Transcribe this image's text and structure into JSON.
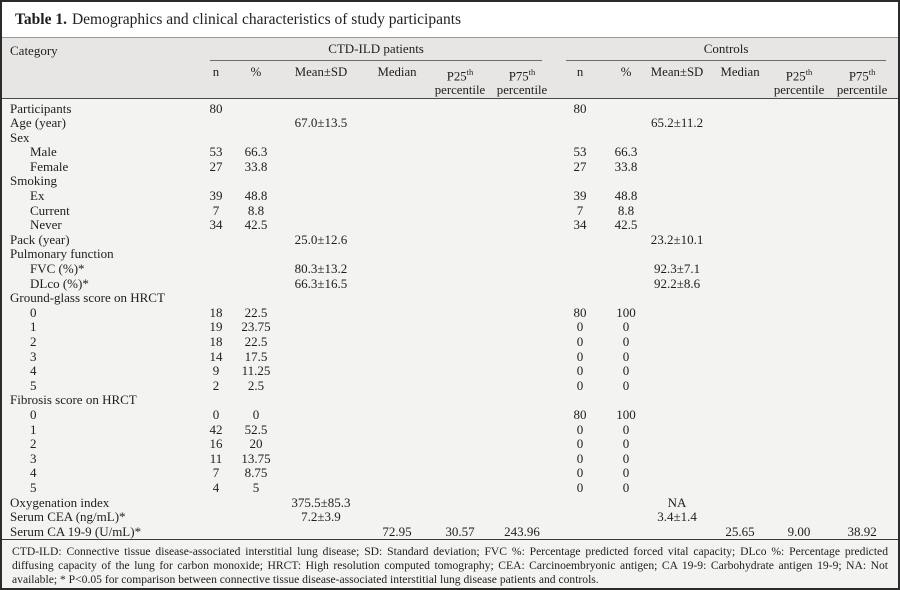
{
  "table": {
    "title_label": "Table 1.",
    "title_text": "Demographics and clinical characteristics of study participants"
  },
  "header": {
    "category": "Category",
    "group_patients": "CTD-ILD patients",
    "group_controls": "Controls",
    "columns": [
      {
        "label": "n"
      },
      {
        "label": "%"
      },
      {
        "label": "Mean±SD"
      },
      {
        "label": "Median"
      },
      {
        "label": "P25",
        "sup": "th",
        "line2": "percentile"
      },
      {
        "label": "P75",
        "sup": "th",
        "line2": "percentile"
      }
    ]
  },
  "rows": [
    {
      "label": "Participants",
      "indent": false,
      "v": [
        "80",
        "",
        "",
        "",
        "",
        "",
        "80",
        "",
        "",
        "",
        "",
        ""
      ]
    },
    {
      "label": "Age (year)",
      "indent": false,
      "v": [
        "",
        "",
        "67.0±13.5",
        "",
        "",
        "",
        "",
        "",
        "65.2±11.2",
        "",
        "",
        ""
      ]
    },
    {
      "label": "Sex",
      "indent": false,
      "v": [
        "",
        "",
        "",
        "",
        "",
        "",
        "",
        "",
        "",
        "",
        "",
        ""
      ]
    },
    {
      "label": "Male",
      "indent": true,
      "v": [
        "53",
        "66.3",
        "",
        "",
        "",
        "",
        "53",
        "66.3",
        "",
        "",
        "",
        ""
      ]
    },
    {
      "label": "Female",
      "indent": true,
      "v": [
        "27",
        "33.8",
        "",
        "",
        "",
        "",
        "27",
        "33.8",
        "",
        "",
        "",
        ""
      ]
    },
    {
      "label": "Smoking",
      "indent": false,
      "v": [
        "",
        "",
        "",
        "",
        "",
        "",
        "",
        "",
        "",
        "",
        "",
        ""
      ]
    },
    {
      "label": "Ex",
      "indent": true,
      "v": [
        "39",
        "48.8",
        "",
        "",
        "",
        "",
        "39",
        "48.8",
        "",
        "",
        "",
        ""
      ]
    },
    {
      "label": "Current",
      "indent": true,
      "v": [
        "7",
        "8.8",
        "",
        "",
        "",
        "",
        "7",
        "8.8",
        "",
        "",
        "",
        ""
      ]
    },
    {
      "label": "Never",
      "indent": true,
      "v": [
        "34",
        "42.5",
        "",
        "",
        "",
        "",
        "34",
        "42.5",
        "",
        "",
        "",
        ""
      ]
    },
    {
      "label": "Pack (year)",
      "indent": false,
      "v": [
        "",
        "",
        "25.0±12.6",
        "",
        "",
        "",
        "",
        "",
        "23.2±10.1",
        "",
        "",
        ""
      ]
    },
    {
      "label": "Pulmonary function",
      "indent": false,
      "v": [
        "",
        "",
        "",
        "",
        "",
        "",
        "",
        "",
        "",
        "",
        "",
        ""
      ]
    },
    {
      "label": "FVC (%)*",
      "indent": true,
      "v": [
        "",
        "",
        "80.3±13.2",
        "",
        "",
        "",
        "",
        "",
        "92.3±7.1",
        "",
        "",
        ""
      ]
    },
    {
      "label": "DLco (%)*",
      "indent": true,
      "v": [
        "",
        "",
        "66.3±16.5",
        "",
        "",
        "",
        "",
        "",
        "92.2±8.6",
        "",
        "",
        ""
      ]
    },
    {
      "label": "Ground-glass score on HRCT",
      "indent": false,
      "v": [
        "",
        "",
        "",
        "",
        "",
        "",
        "",
        "",
        "",
        "",
        "",
        ""
      ]
    },
    {
      "label": "0",
      "indent": true,
      "v": [
        "18",
        "22.5",
        "",
        "",
        "",
        "",
        "80",
        "100",
        "",
        "",
        "",
        ""
      ]
    },
    {
      "label": "1",
      "indent": true,
      "v": [
        "19",
        "23.75",
        "",
        "",
        "",
        "",
        "0",
        "0",
        "",
        "",
        "",
        ""
      ]
    },
    {
      "label": "2",
      "indent": true,
      "v": [
        "18",
        "22.5",
        "",
        "",
        "",
        "",
        "0",
        "0",
        "",
        "",
        "",
        ""
      ]
    },
    {
      "label": "3",
      "indent": true,
      "v": [
        "14",
        "17.5",
        "",
        "",
        "",
        "",
        "0",
        "0",
        "",
        "",
        "",
        ""
      ]
    },
    {
      "label": "4",
      "indent": true,
      "v": [
        "9",
        "11.25",
        "",
        "",
        "",
        "",
        "0",
        "0",
        "",
        "",
        "",
        ""
      ]
    },
    {
      "label": "5",
      "indent": true,
      "v": [
        "2",
        "2.5",
        "",
        "",
        "",
        "",
        "0",
        "0",
        "",
        "",
        "",
        ""
      ]
    },
    {
      "label": "Fibrosis score on HRCT",
      "indent": false,
      "v": [
        "",
        "",
        "",
        "",
        "",
        "",
        "",
        "",
        "",
        "",
        "",
        ""
      ]
    },
    {
      "label": "0",
      "indent": true,
      "v": [
        "0",
        "0",
        "",
        "",
        "",
        "",
        "80",
        "100",
        "",
        "",
        "",
        ""
      ]
    },
    {
      "label": "1",
      "indent": true,
      "v": [
        "42",
        "52.5",
        "",
        "",
        "",
        "",
        "0",
        "0",
        "",
        "",
        "",
        ""
      ]
    },
    {
      "label": "2",
      "indent": true,
      "v": [
        "16",
        "20",
        "",
        "",
        "",
        "",
        "0",
        "0",
        "",
        "",
        "",
        ""
      ]
    },
    {
      "label": "3",
      "indent": true,
      "v": [
        "11",
        "13.75",
        "",
        "",
        "",
        "",
        "0",
        "0",
        "",
        "",
        "",
        ""
      ]
    },
    {
      "label": "4",
      "indent": true,
      "v": [
        "7",
        "8.75",
        "",
        "",
        "",
        "",
        "0",
        "0",
        "",
        "",
        "",
        ""
      ]
    },
    {
      "label": "5",
      "indent": true,
      "v": [
        "4",
        "5",
        "",
        "",
        "",
        "",
        "0",
        "0",
        "",
        "",
        "",
        ""
      ]
    },
    {
      "label": "Oxygenation index",
      "indent": false,
      "v": [
        "",
        "",
        "375.5±85.3",
        "",
        "",
        "",
        "",
        "",
        "NA",
        "",
        "",
        ""
      ]
    },
    {
      "label": "Serum CEA (ng/mL)*",
      "indent": false,
      "v": [
        "",
        "",
        "7.2±3.9",
        "",
        "",
        "",
        "",
        "",
        "3.4±1.4",
        "",
        "",
        ""
      ]
    },
    {
      "label": "Serum CA 19-9 (U/mL)*",
      "indent": false,
      "v": [
        "",
        "",
        "",
        "72.95",
        "30.57",
        "243.96",
        "",
        "",
        "",
        "25.65",
        "9.00",
        "38.92"
      ]
    }
  ],
  "footnote": "CTD-ILD: Connective tissue disease-associated interstitial lung disease; SD: Standard deviation; FVC %: Percentage predicted forced vital capacity; DLco %: Percentage predicted diffusing capacity of the lung for carbon monoxide; HRCT: High resolution computed tomography; CEA: Carcinoembryonic antigen; CA 19-9: Carbohydrate antigen 19-9; NA: Not available; * P<0.05 for comparison between connective tissue disease-associated interstitial lung disease patients and controls.",
  "colors": {
    "title_bg": "#ffffff",
    "header_bg": "#e7e6e4",
    "body_bg": "#f3f3f1",
    "border": "#2b2b2b"
  }
}
